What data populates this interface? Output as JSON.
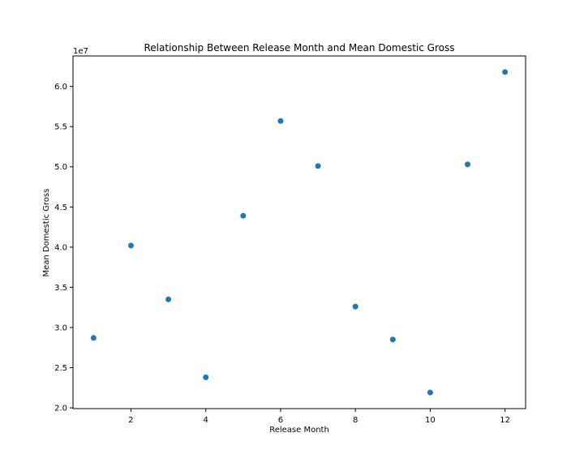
{
  "chart_data": {
    "type": "scatter",
    "title": "Relationship Between Release Month and Mean Domestic Gross",
    "xlabel": "Release Month",
    "ylabel": "Mean Domestic Gross",
    "y_offset_label": "1e7",
    "x": [
      1,
      2,
      3,
      4,
      5,
      6,
      7,
      8,
      9,
      10,
      11,
      12
    ],
    "y": [
      28700000,
      40200000,
      33500000,
      23800000,
      43900000,
      55700000,
      50100000,
      32600000,
      28500000,
      21900000,
      50300000,
      61800000
    ],
    "xlim": [
      0.45,
      12.55
    ],
    "ylim": [
      19900000,
      63800000
    ],
    "x_ticks": [
      2,
      4,
      6,
      8,
      10,
      12
    ],
    "x_tick_labels": [
      "2",
      "4",
      "6",
      "8",
      "10",
      "12"
    ],
    "y_ticks": [
      20000000,
      25000000,
      30000000,
      35000000,
      40000000,
      45000000,
      50000000,
      55000000,
      60000000
    ],
    "y_tick_labels": [
      "2.0",
      "2.5",
      "3.0",
      "3.5",
      "4.0",
      "4.5",
      "5.0",
      "5.5",
      "6.0"
    ],
    "grid": false,
    "marker_color": "#1f77b4"
  }
}
